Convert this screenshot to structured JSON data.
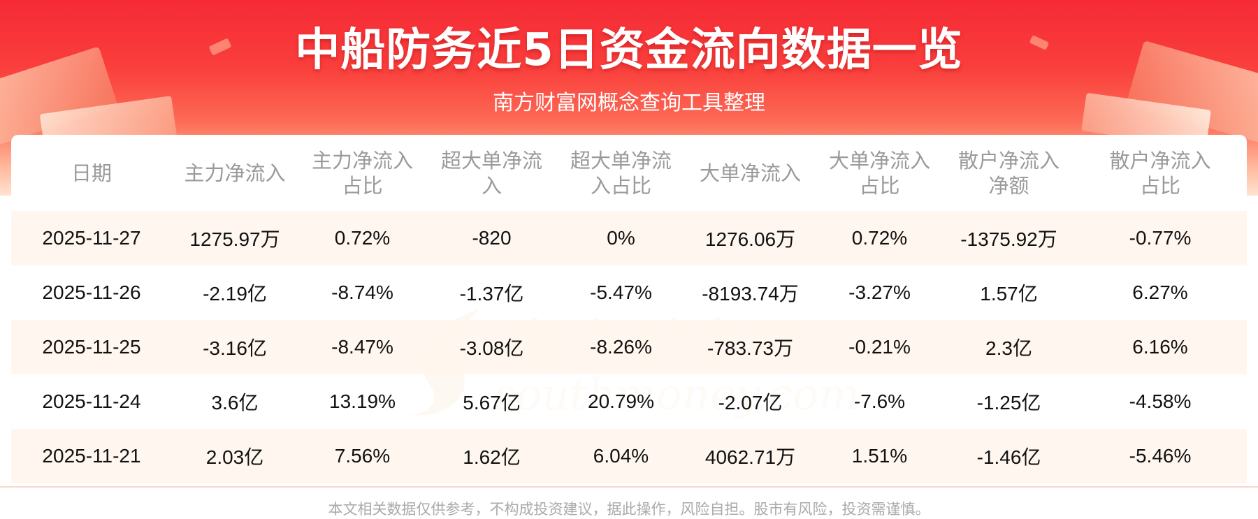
{
  "header": {
    "title": "中船防务近5日资金流向数据一览",
    "subtitle": "南方财富网概念查询工具整理"
  },
  "watermark": {
    "cn": "南方财富网",
    "en": "southmoney.com"
  },
  "table": {
    "columns": [
      {
        "line1": "日期",
        "line2": ""
      },
      {
        "line1": "主力净流入",
        "line2": ""
      },
      {
        "line1": "主力净流入",
        "line2": "占比"
      },
      {
        "line1": "超大单净流",
        "line2": "入"
      },
      {
        "line1": "超大单净流",
        "line2": "入占比"
      },
      {
        "line1": "大单净流入",
        "line2": ""
      },
      {
        "line1": "大单净流入",
        "line2": "占比"
      },
      {
        "line1": "散户净流入",
        "line2": "净额"
      },
      {
        "line1": "散户净流入",
        "line2": "占比"
      }
    ],
    "rows": [
      [
        "2025-11-27",
        "1275.97万",
        "0.72%",
        "-820",
        "0%",
        "1276.06万",
        "0.72%",
        "-1375.92万",
        "-0.77%"
      ],
      [
        "2025-11-26",
        "-2.19亿",
        "-8.74%",
        "-1.37亿",
        "-5.47%",
        "-8193.74万",
        "-3.27%",
        "1.57亿",
        "6.27%"
      ],
      [
        "2025-11-25",
        "-3.16亿",
        "-8.47%",
        "-3.08亿",
        "-8.26%",
        "-783.73万",
        "-0.21%",
        "2.3亿",
        "6.16%"
      ],
      [
        "2025-11-24",
        "3.6亿",
        "13.19%",
        "5.67亿",
        "20.79%",
        "-2.07亿",
        "-7.6%",
        "-1.25亿",
        "-4.58%"
      ],
      [
        "2025-11-21",
        "2.03亿",
        "7.56%",
        "1.62亿",
        "6.04%",
        "4062.71万",
        "1.51%",
        "-1.46亿",
        "-5.46%"
      ]
    ]
  },
  "footer": {
    "disclaimer": "本文相关数据仅供参考，不构成投资建议，据此操作，风险自担。股市有风险，投资需谨慎。"
  },
  "colors": {
    "header_red": "#f52a35",
    "row_tint": "#fff6ee",
    "header_text": "#9a9a9a"
  }
}
